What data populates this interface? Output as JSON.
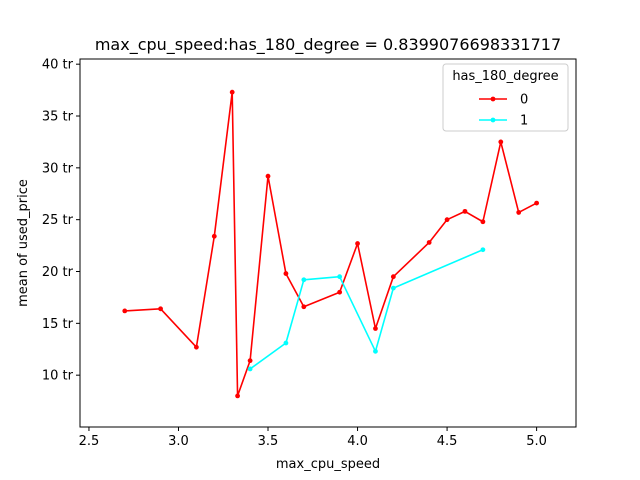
{
  "chart_data": {
    "type": "line",
    "title": "max_cpu_speed:has_180_degree = 0.8399076698331717",
    "xlabel": "max_cpu_speed",
    "ylabel": "mean of used_price",
    "xlim": [
      2.45,
      5.22
    ],
    "ylim": [
      5.0,
      40.5
    ],
    "x_ticks": [
      2.5,
      3.0,
      3.5,
      4.0,
      4.5,
      5.0
    ],
    "x_tick_labels": [
      "2.5",
      "3.0",
      "3.5",
      "4.0",
      "4.5",
      "5.0"
    ],
    "y_ticks": [
      10,
      15,
      20,
      25,
      30,
      35,
      40
    ],
    "y_tick_labels": [
      "10 tr",
      "15 tr",
      "20 tr",
      "25 tr",
      "30 tr",
      "35 tr",
      "40 tr"
    ],
    "legend": {
      "title": "has_180_degree",
      "placement": "top-right"
    },
    "series": [
      {
        "name": "0",
        "color": "#ff0000",
        "points": [
          [
            2.7,
            16.2
          ],
          [
            2.9,
            16.4
          ],
          [
            3.1,
            12.7
          ],
          [
            3.2,
            23.4
          ],
          [
            3.3,
            37.3
          ],
          [
            3.33,
            8.0
          ],
          [
            3.4,
            11.4
          ],
          [
            3.5,
            29.2
          ],
          [
            3.6,
            19.8
          ],
          [
            3.7,
            16.6
          ],
          [
            3.9,
            18.0
          ],
          [
            4.0,
            22.7
          ],
          [
            4.1,
            14.5
          ],
          [
            4.2,
            19.5
          ],
          [
            4.4,
            22.8
          ],
          [
            4.5,
            25.0
          ],
          [
            4.6,
            25.8
          ],
          [
            4.7,
            24.8
          ],
          [
            4.8,
            32.5
          ],
          [
            4.9,
            25.7
          ],
          [
            5.0,
            26.6
          ]
        ]
      },
      {
        "name": "1",
        "color": "#00ffff",
        "points": [
          [
            3.4,
            10.6
          ],
          [
            3.6,
            13.1
          ],
          [
            3.7,
            19.2
          ],
          [
            3.9,
            19.5
          ],
          [
            4.1,
            12.3
          ],
          [
            4.2,
            18.4
          ],
          [
            4.7,
            22.1
          ]
        ]
      }
    ]
  }
}
